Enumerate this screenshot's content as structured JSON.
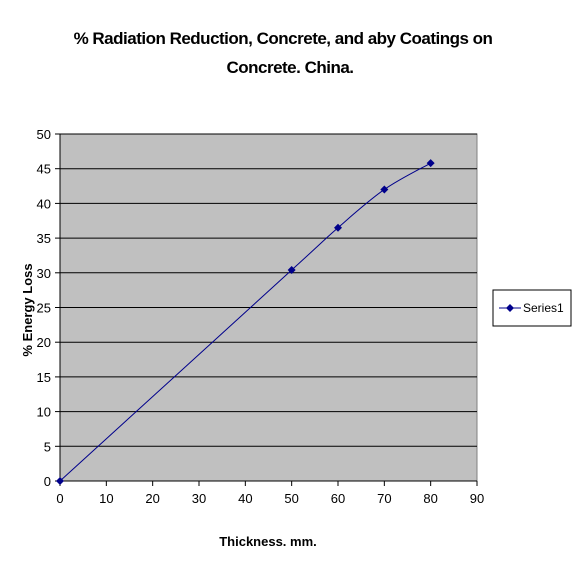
{
  "chart_data": {
    "type": "line",
    "title_lines": [
      "% Radiation Reduction, Concrete, and aby Coatings on",
      "Concrete. China."
    ],
    "xlabel": "Thickness. mm.",
    "ylabel": "% Energy Loss",
    "xlim": [
      0,
      90
    ],
    "ylim": [
      0,
      50
    ],
    "x_ticks": [
      "0",
      "10",
      "20",
      "30",
      "40",
      "50",
      "60",
      "70",
      "80",
      "90"
    ],
    "y_ticks": [
      "0",
      "5",
      "10",
      "15",
      "20",
      "25",
      "30",
      "35",
      "40",
      "45",
      "50"
    ],
    "grid": "horizontal",
    "plot_background": "#c0c0c0",
    "legend_position": "right",
    "series": [
      {
        "name": "Series1",
        "color": "#00008b",
        "marker": "diamond",
        "x": [
          0,
          50,
          60,
          70,
          80
        ],
        "y": [
          0,
          30.4,
          36.5,
          42,
          45.8
        ]
      }
    ]
  }
}
